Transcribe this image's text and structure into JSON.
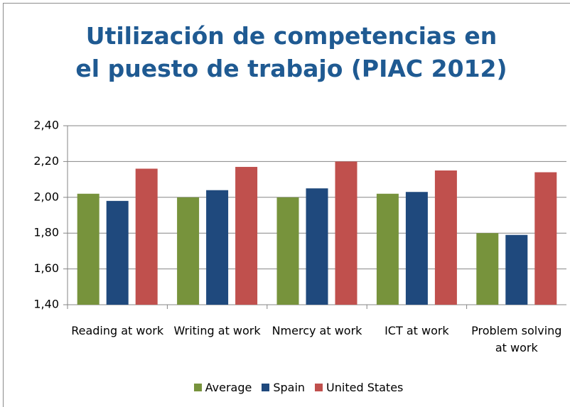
{
  "chart_data": {
    "type": "bar",
    "title": "Utilización de competencias en el puesto de trabajo (PIAC 2012)",
    "categories": [
      "Reading at work",
      "Writing at work",
      "Nmercy at work",
      "ICT at work",
      "Problem solving at work"
    ],
    "series": [
      {
        "name": "Average",
        "color": "#77933c",
        "values": [
          2.02,
          2.0,
          2.0,
          2.02,
          1.8
        ]
      },
      {
        "name": "Spain",
        "color": "#1f497d",
        "values": [
          1.98,
          2.04,
          2.05,
          2.03,
          1.79
        ]
      },
      {
        "name": "United States",
        "color": "#c0504d",
        "values": [
          2.16,
          2.17,
          2.2,
          2.15,
          2.14
        ]
      }
    ],
    "ylim": [
      1.4,
      2.4
    ],
    "yticks": [
      {
        "value": 1.4,
        "label": "1,40"
      },
      {
        "value": 1.6,
        "label": "1,60"
      },
      {
        "value": 1.8,
        "label": "1,80"
      },
      {
        "value": 2.0,
        "label": "2,00"
      },
      {
        "value": 2.2,
        "label": "2,20"
      },
      {
        "value": 2.4,
        "label": "2,40"
      }
    ],
    "grid": true,
    "legend": "bottom"
  }
}
